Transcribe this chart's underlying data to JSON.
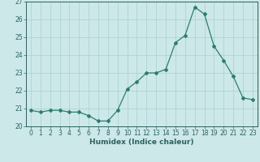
{
  "x": [
    0,
    1,
    2,
    3,
    4,
    5,
    6,
    7,
    8,
    9,
    10,
    11,
    12,
    13,
    14,
    15,
    16,
    17,
    18,
    19,
    20,
    21,
    22,
    23
  ],
  "y": [
    20.9,
    20.8,
    20.9,
    20.9,
    20.8,
    20.8,
    20.6,
    20.3,
    20.3,
    20.9,
    22.1,
    22.5,
    23.0,
    23.0,
    23.2,
    24.7,
    25.1,
    26.7,
    26.3,
    24.5,
    23.7,
    22.8,
    21.6,
    21.5
  ],
  "line_color": "#2e7d6e",
  "marker": "D",
  "marker_size": 2.0,
  "bg_color": "#cce8e8",
  "grid_color": "#a8d0d0",
  "xlabel": "Humidex (Indice chaleur)",
  "ylim_min": 20,
  "ylim_max": 27,
  "xlim_min": -0.5,
  "xlim_max": 23.5,
  "yticks": [
    20,
    21,
    22,
    23,
    24,
    25,
    26,
    27
  ],
  "xticks": [
    0,
    1,
    2,
    3,
    4,
    5,
    6,
    7,
    8,
    9,
    10,
    11,
    12,
    13,
    14,
    15,
    16,
    17,
    18,
    19,
    20,
    21,
    22,
    23
  ],
  "tick_color": "#2e6060",
  "label_fontsize": 6.5,
  "tick_fontsize": 5.5,
  "linewidth": 0.9
}
